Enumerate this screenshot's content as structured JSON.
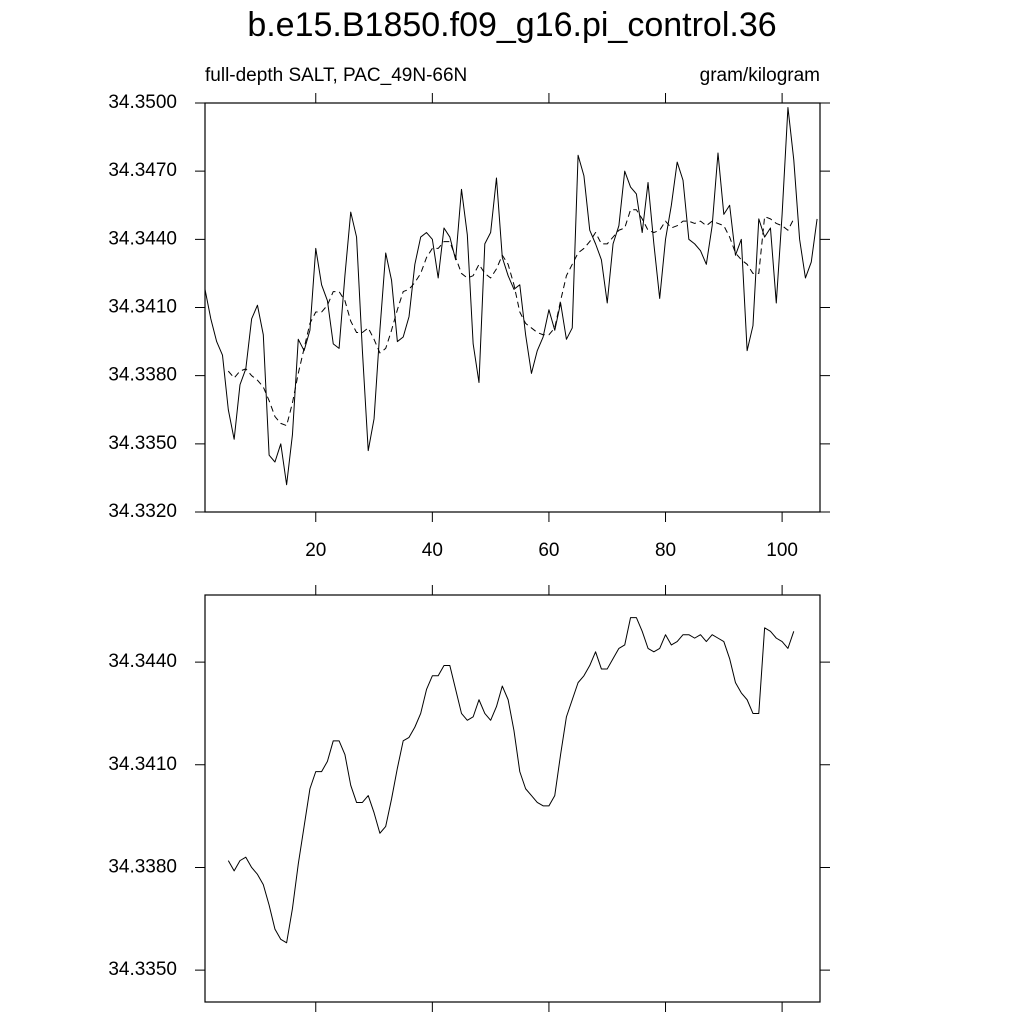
{
  "title": "b.e15.B1850.f09_g16.pi_control.36",
  "chart_data": [
    {
      "type": "line",
      "subtitle": "full-depth SALT, PAC_49N-66N",
      "units": "gram/kilogram",
      "x": [
        1,
        2,
        3,
        4,
        5,
        6,
        7,
        8,
        9,
        10,
        11,
        12,
        13,
        14,
        15,
        16,
        17,
        18,
        19,
        20,
        21,
        22,
        23,
        24,
        25,
        26,
        27,
        28,
        29,
        30,
        31,
        32,
        33,
        34,
        35,
        36,
        37,
        38,
        39,
        40,
        41,
        42,
        43,
        44,
        45,
        46,
        47,
        48,
        49,
        50,
        51,
        52,
        53,
        54,
        55,
        56,
        57,
        58,
        59,
        60,
        61,
        62,
        63,
        64,
        65,
        66,
        67,
        68,
        69,
        70,
        71,
        72,
        73,
        74,
        75,
        76,
        77,
        78,
        79,
        80,
        81,
        82,
        83,
        84,
        85,
        86,
        87,
        88,
        89,
        90,
        91,
        92,
        93,
        94,
        95,
        96,
        97,
        98,
        99,
        100,
        101,
        102,
        103,
        104,
        105,
        106
      ],
      "series": [
        {
          "color": "#000000",
          "dashed": false,
          "values": [
            34.3418,
            34.3405,
            34.3395,
            34.3389,
            34.3365,
            34.3352,
            34.3376,
            34.3383,
            34.3405,
            34.3411,
            34.3398,
            34.3345,
            34.3342,
            34.335,
            34.3332,
            34.3354,
            34.3396,
            34.3391,
            34.34,
            34.3436,
            34.342,
            34.3413,
            34.3394,
            34.3392,
            34.3424,
            34.3452,
            34.3441,
            34.3391,
            34.3347,
            34.3361,
            34.34,
            34.3434,
            34.3422,
            34.3395,
            34.3397,
            34.3406,
            34.3429,
            34.3441,
            34.3443,
            34.344,
            34.3423,
            34.3445,
            34.3441,
            34.3431,
            34.3462,
            34.3442,
            34.3394,
            34.3377,
            34.3438,
            34.3443,
            34.3467,
            34.3432,
            34.3424,
            34.3418,
            34.342,
            34.3398,
            34.3381,
            34.3391,
            34.3397,
            34.3409,
            34.34,
            34.3412,
            34.3396,
            34.3401,
            34.3477,
            34.3468,
            34.3444,
            34.3438,
            34.3431,
            34.3412,
            34.3438,
            34.3446,
            34.347,
            34.3463,
            34.346,
            34.3443,
            34.3465,
            34.3438,
            34.3414,
            34.344,
            34.3455,
            34.3474,
            34.3466,
            34.344,
            34.3438,
            34.3435,
            34.3429,
            34.3446,
            34.3478,
            34.3451,
            34.3455,
            34.3433,
            34.344,
            34.3391,
            34.3402,
            34.3449,
            34.3441,
            34.3445,
            34.3412,
            34.3451,
            34.3498,
            34.3475,
            34.344,
            34.3423,
            34.343,
            34.3449
          ]
        },
        {
          "color": "#000000",
          "dashed": true,
          "values": [
            null,
            null,
            null,
            null,
            34.3382,
            34.3379,
            34.3382,
            34.3383,
            34.338,
            34.3378,
            34.3375,
            34.3369,
            34.3362,
            34.3359,
            34.3358,
            34.3368,
            34.3381,
            34.3392,
            34.3403,
            34.3408,
            34.3408,
            34.3411,
            34.3417,
            34.3417,
            34.3413,
            34.3404,
            34.3399,
            34.3399,
            34.3401,
            34.3396,
            34.339,
            34.3392,
            34.34,
            34.3409,
            34.3417,
            34.3418,
            34.3421,
            34.3425,
            34.3432,
            34.3436,
            34.3436,
            34.3439,
            34.3439,
            34.3432,
            34.3425,
            34.3423,
            34.3424,
            34.3429,
            34.3425,
            34.3423,
            34.3427,
            34.3433,
            34.3429,
            34.342,
            34.3408,
            34.3403,
            34.3401,
            34.3399,
            34.3398,
            34.3398,
            34.3401,
            34.3413,
            34.3424,
            34.3429,
            34.3434,
            34.3436,
            34.3439,
            34.3443,
            34.3438,
            34.3438,
            34.3441,
            34.3444,
            34.3445,
            34.3453,
            34.3453,
            34.3449,
            34.3444,
            34.3443,
            34.3444,
            34.3448,
            34.3445,
            34.3446,
            34.3448,
            34.3448,
            34.3447,
            34.3448,
            34.3446,
            34.3448,
            34.3447,
            34.3446,
            34.3441,
            34.3434,
            34.3431,
            34.3429,
            34.3425,
            34.3425,
            34.345,
            34.3449,
            34.3447,
            34.3446,
            34.3444,
            34.3449,
            null,
            null,
            null,
            null
          ]
        }
      ],
      "xlim": [
        1,
        106.5
      ],
      "xticks": [
        20,
        40,
        60,
        80,
        100
      ],
      "x_tick_labels": true,
      "ylim": [
        34.332,
        34.35
      ],
      "yticks": [
        {
          "value": 34.332,
          "label": "34.3320"
        },
        {
          "value": 34.335,
          "label": "34.3350"
        },
        {
          "value": 34.338,
          "label": "34.3380"
        },
        {
          "value": 34.341,
          "label": "34.3410"
        },
        {
          "value": 34.344,
          "label": "34.3440"
        },
        {
          "value": 34.347,
          "label": "34.3470"
        },
        {
          "value": 34.35,
          "label": "34.3500"
        }
      ]
    },
    {
      "type": "line",
      "x": [
        1,
        2,
        3,
        4,
        5,
        6,
        7,
        8,
        9,
        10,
        11,
        12,
        13,
        14,
        15,
        16,
        17,
        18,
        19,
        20,
        21,
        22,
        23,
        24,
        25,
        26,
        27,
        28,
        29,
        30,
        31,
        32,
        33,
        34,
        35,
        36,
        37,
        38,
        39,
        40,
        41,
        42,
        43,
        44,
        45,
        46,
        47,
        48,
        49,
        50,
        51,
        52,
        53,
        54,
        55,
        56,
        57,
        58,
        59,
        60,
        61,
        62,
        63,
        64,
        65,
        66,
        67,
        68,
        69,
        70,
        71,
        72,
        73,
        74,
        75,
        76,
        77,
        78,
        79,
        80,
        81,
        82,
        83,
        84,
        85,
        86,
        87,
        88,
        89,
        90,
        91,
        92,
        93,
        94,
        95,
        96,
        97,
        98,
        99,
        100,
        101,
        102,
        103,
        104,
        105,
        106
      ],
      "series": [
        {
          "color": "#000000",
          "dashed": false,
          "values": [
            null,
            null,
            null,
            null,
            34.3382,
            34.3379,
            34.3382,
            34.3383,
            34.338,
            34.3378,
            34.3375,
            34.3369,
            34.3362,
            34.3359,
            34.3358,
            34.3368,
            34.3381,
            34.3392,
            34.3403,
            34.3408,
            34.3408,
            34.3411,
            34.3417,
            34.3417,
            34.3413,
            34.3404,
            34.3399,
            34.3399,
            34.3401,
            34.3396,
            34.339,
            34.3392,
            34.34,
            34.3409,
            34.3417,
            34.3418,
            34.3421,
            34.3425,
            34.3432,
            34.3436,
            34.3436,
            34.3439,
            34.3439,
            34.3432,
            34.3425,
            34.3423,
            34.3424,
            34.3429,
            34.3425,
            34.3423,
            34.3427,
            34.3433,
            34.3429,
            34.342,
            34.3408,
            34.3403,
            34.3401,
            34.3399,
            34.3398,
            34.3398,
            34.3401,
            34.3413,
            34.3424,
            34.3429,
            34.3434,
            34.3436,
            34.3439,
            34.3443,
            34.3438,
            34.3438,
            34.3441,
            34.3444,
            34.3445,
            34.3453,
            34.3453,
            34.3449,
            34.3444,
            34.3443,
            34.3444,
            34.3448,
            34.3445,
            34.3446,
            34.3448,
            34.3448,
            34.3447,
            34.3448,
            34.3446,
            34.3448,
            34.3447,
            34.3446,
            34.3441,
            34.3434,
            34.3431,
            34.3429,
            34.3425,
            34.3425,
            34.345,
            34.3449,
            34.3447,
            34.3446,
            34.3444,
            34.3449,
            null,
            null,
            null,
            null
          ]
        }
      ],
      "xlim": [
        1,
        106.5
      ],
      "xticks": [
        20,
        40,
        60,
        80,
        100
      ],
      "x_tick_labels": false,
      "ylim": [
        34.33407,
        34.34596
      ],
      "yticks": [
        {
          "value": 34.335,
          "label": "34.3350"
        },
        {
          "value": 34.338,
          "label": "34.3380"
        },
        {
          "value": 34.341,
          "label": "34.3410"
        },
        {
          "value": 34.344,
          "label": "34.3440"
        }
      ]
    }
  ]
}
